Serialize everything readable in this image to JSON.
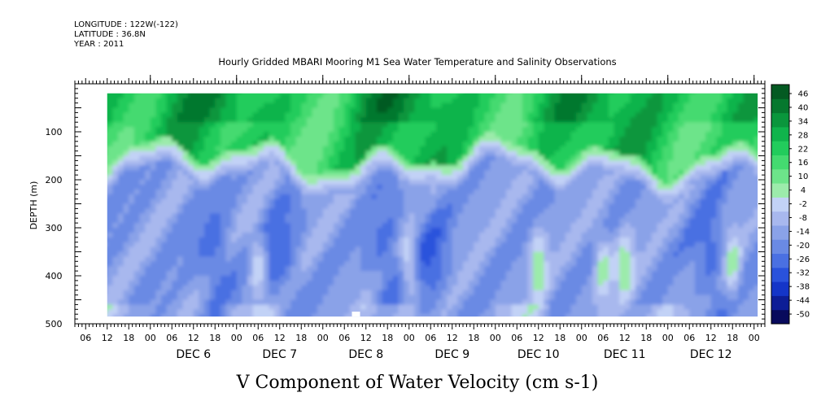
{
  "header": {
    "longitude": "LONGITUDE : 122W(-122)",
    "latitude": "LATITUDE : 36.8N",
    "year": "YEAR : 2011"
  },
  "chart_data": {
    "type": "heatmap",
    "title": "Hourly Gridded MBARI Mooring M1 Sea Water Temperature and Salinity Observations",
    "xlabel": "V Component of Water Velocity (cm s-1)",
    "ylabel": "DEPTH (m)",
    "x_units": "hours, Dec 2011",
    "xlim": [
      "2011-12-05 03:00",
      "2011-12-13 03:00"
    ],
    "data_extent_x": [
      "2011-12-05 12:00",
      "2011-12-13 01:00"
    ],
    "ylim": [
      500,
      0
    ],
    "data_extent_y": [
      20,
      485
    ],
    "y_inverted": true,
    "y_ticks": [
      100,
      200,
      300,
      400,
      500
    ],
    "x_tick_hours": [
      "06",
      "12",
      "18",
      "00",
      "06",
      "12",
      "18",
      "00",
      "06",
      "12",
      "18",
      "00",
      "06",
      "12",
      "18",
      "00",
      "06",
      "12",
      "18",
      "00",
      "06",
      "12",
      "18",
      "00",
      "06",
      "12",
      "18",
      "00",
      "06",
      "12",
      "18",
      "00"
    ],
    "x_day_labels": [
      "DEC 6",
      "DEC 7",
      "DEC 8",
      "DEC 9",
      "DEC 10",
      "DEC 11",
      "DEC 12"
    ],
    "colorbar": {
      "levels": [
        -50,
        -44,
        -38,
        -32,
        -26,
        -20,
        -14,
        -8,
        -2,
        4,
        10,
        16,
        22,
        28,
        34,
        40,
        46
      ],
      "labels": [
        "46",
        "40",
        "34",
        "28",
        "22",
        "16",
        "10",
        "4",
        "-2",
        "-8",
        "-14",
        "-20",
        "-26",
        "-32",
        "-38",
        "-44",
        "-50"
      ],
      "colors": [
        "#080a5c",
        "#0d1d96",
        "#1435c8",
        "#2a52dc",
        "#4a70e2",
        "#6a8ae4",
        "#8aa2e8",
        "#a8b8ee",
        "#c2d2f6",
        "#9cebab",
        "#6de48a",
        "#44da70",
        "#22cc5c",
        "#10b44c",
        "#0a963c",
        "#06782e",
        "#045a22"
      ]
    },
    "surface_layer": {
      "depth_range_m": [
        20,
        200
      ],
      "typical_value_cm_s": 25,
      "peak_value_cm_s": 40
    },
    "deep_layer": {
      "depth_range_m": [
        150,
        485
      ],
      "typical_value_cm_s": -12,
      "minimum_value_cm_s": -24,
      "strongest_negative_near": [
        "DEC 6 18",
        "DEC 7 12",
        "DEC 8 18",
        "DEC 9 06",
        "DEC 12 12"
      ],
      "positive_patches_near": [
        "DEC 7 06",
        "DEC 9 00",
        "DEC 10 12",
        "DEC 11 06",
        "DEC 11 12",
        "DEC 12 18"
      ]
    },
    "missing_data_near": "DEC 8 09, 485 m"
  }
}
